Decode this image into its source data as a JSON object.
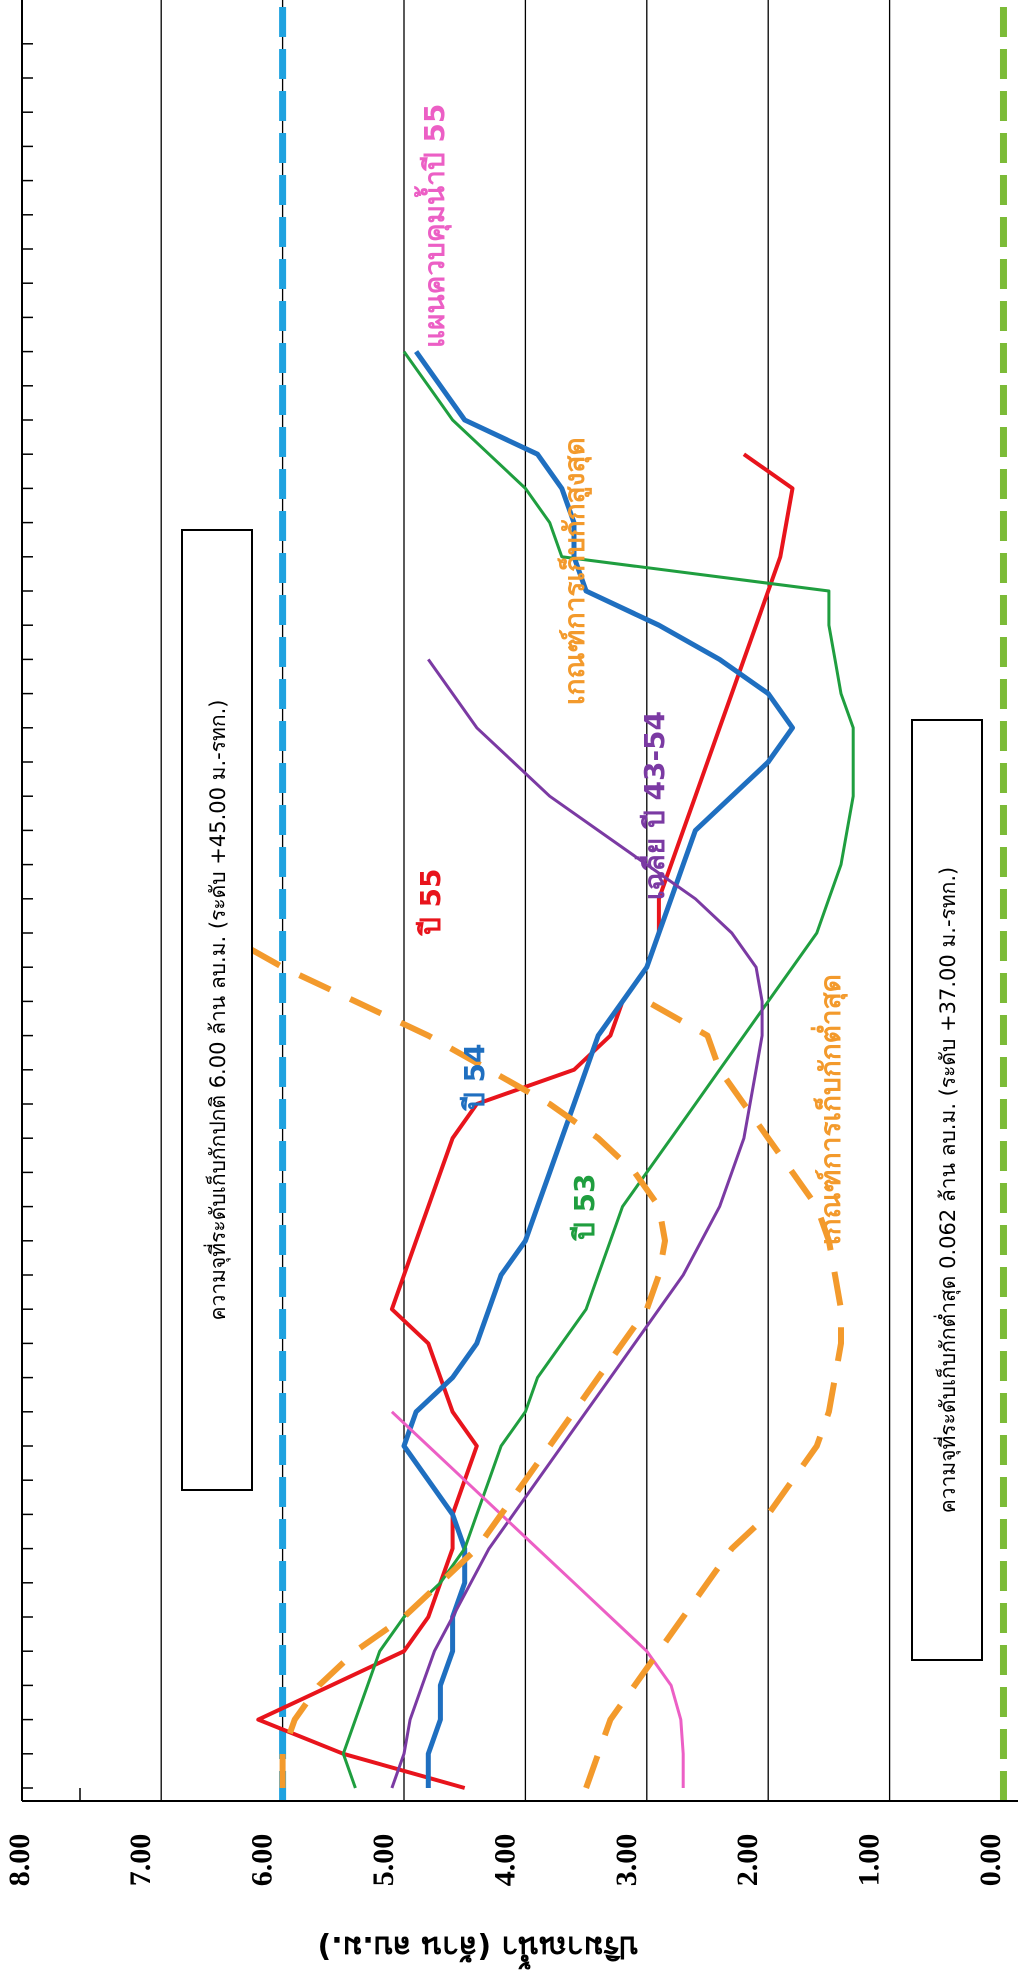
{
  "chart_data": {
    "type": "line",
    "ylabel": "ปริมาณน้ำ (ล้าน ลบ.ม.)",
    "ylim": [
      0,
      8
    ],
    "y_ticks": [
      "0.00",
      "1.00",
      "2.00",
      "3.00",
      "4.00",
      "5.00",
      "6.00",
      "7.00",
      "8.00"
    ],
    "x_points": 51,
    "grid": true,
    "reference_lines": [
      {
        "name": "normal_max",
        "value": 6.0,
        "color": "#1fa2e0",
        "dash": "long"
      },
      {
        "name": "minimum",
        "value": 0.062,
        "color": "#7cbb37",
        "dash": "long"
      }
    ],
    "annotations": [
      {
        "text": "ความจุที่ระดับเก็บกักปกติ 6.00 ล้าน ลบ.ม. (ระดับ +45.00 ม.-รทก.)"
      },
      {
        "text": "ความจุที่ระดับเก็บกักต่ำสุด 0.062 ล้าน ลบ.ม. (ระดับ +37.00 ม.-รทก.)"
      }
    ],
    "series": [
      {
        "name": "ปี 55",
        "color": "#e8141c",
        "width": 4,
        "values": [
          4.5,
          5.5,
          6.2,
          5.6,
          5.0,
          4.8,
          4.7,
          4.6,
          4.6,
          4.5,
          4.4,
          4.6,
          4.7,
          4.8,
          5.1,
          5.0,
          4.9,
          4.8,
          4.7,
          4.6,
          4.4,
          3.6,
          3.3,
          3.2,
          3.0,
          2.9,
          2.9,
          2.8,
          2.7,
          2.6,
          2.5,
          2.4,
          2.3,
          2.2,
          2.1,
          2.0,
          1.9,
          1.85,
          1.8,
          2.2
        ]
      },
      {
        "name": "ปี 54",
        "color": "#1f6fc0",
        "width": 5,
        "values": [
          4.8,
          4.8,
          4.7,
          4.7,
          4.6,
          4.6,
          4.5,
          4.5,
          4.6,
          4.8,
          5.0,
          4.9,
          4.6,
          4.4,
          4.3,
          4.2,
          4.0,
          3.9,
          3.8,
          3.7,
          3.6,
          3.5,
          3.4,
          3.2,
          3.0,
          2.9,
          2.8,
          2.7,
          2.6,
          2.3,
          2.0,
          1.8,
          2.0,
          2.4,
          2.9,
          3.5,
          3.6,
          3.6,
          3.7,
          3.9,
          4.5,
          4.7,
          4.9
        ]
      },
      {
        "name": "ปี 53",
        "color": "#1f9e3f",
        "width": 3,
        "values": [
          5.4,
          5.5,
          5.4,
          5.3,
          5.2,
          5.0,
          4.7,
          4.5,
          4.4,
          4.3,
          4.2,
          4.0,
          3.9,
          3.7,
          3.5,
          3.4,
          3.3,
          3.2,
          3.0,
          2.8,
          2.6,
          2.4,
          2.2,
          2.0,
          1.8,
          1.6,
          1.5,
          1.4,
          1.35,
          1.3,
          1.3,
          1.3,
          1.4,
          1.45,
          1.5,
          1.5,
          3.7,
          3.8,
          4.0,
          4.3,
          4.6,
          4.8,
          5.0
        ]
      },
      {
        "name": "เฉลี่ย ปี 43-54",
        "color": "#7b3aa3",
        "width": 3,
        "values": [
          5.1,
          5.0,
          4.95,
          4.85,
          4.75,
          4.6,
          4.45,
          4.3,
          4.1,
          3.9,
          3.7,
          3.5,
          3.3,
          3.1,
          2.9,
          2.7,
          2.55,
          2.4,
          2.3,
          2.2,
          2.15,
          2.1,
          2.05,
          2.05,
          2.1,
          2.3,
          2.6,
          3.0,
          3.4,
          3.8,
          4.1,
          4.4,
          4.6,
          4.8
        ]
      },
      {
        "name": "แผนควบคุมน้ำปี 55",
        "color": "#ec5fc5",
        "width": 3,
        "values": [
          2.7,
          2.7,
          2.72,
          2.8,
          3.0,
          3.3,
          3.6,
          3.9,
          4.2,
          4.5,
          4.8,
          5.1
        ]
      },
      {
        "name": "เกณฑ์การเก็บกักสูงสุด",
        "color": "#f39a2c",
        "width": 6,
        "dashed": true,
        "values": [
          6.0,
          6.0,
          5.9,
          5.7,
          5.4,
          5.0,
          4.7,
          4.4,
          4.2,
          4.0,
          3.8,
          3.6,
          3.4,
          3.2,
          3.0,
          2.9,
          2.85,
          2.9,
          3.1,
          3.4,
          3.8,
          4.3,
          4.8,
          5.4,
          6.0,
          6.5
        ]
      },
      {
        "name": "เกณฑ์การเก็บกักต่ำสุด",
        "color": "#f39a2c",
        "width": 6,
        "dashed": true,
        "values": [
          3.5,
          3.4,
          3.3,
          3.1,
          2.9,
          2.7,
          2.5,
          2.3,
          2.0,
          1.8,
          1.6,
          1.5,
          1.45,
          1.4,
          1.4,
          1.45,
          1.5,
          1.6,
          1.8,
          2.0,
          2.2,
          2.4,
          2.5,
          3.0
        ]
      }
    ],
    "series_labels": [
      {
        "text": "ปี 55"
      },
      {
        "text": "ปี 54"
      },
      {
        "text": "ปี 53"
      },
      {
        "text": "เฉลี่ย ปี 43-54"
      },
      {
        "text": "แผนควบคุมน้ำปี 55"
      },
      {
        "text": "เกณฑ์การเก็บกักสูงสุด"
      },
      {
        "text": "เกณฑ์การเก็บกักต่ำสุด"
      }
    ]
  }
}
